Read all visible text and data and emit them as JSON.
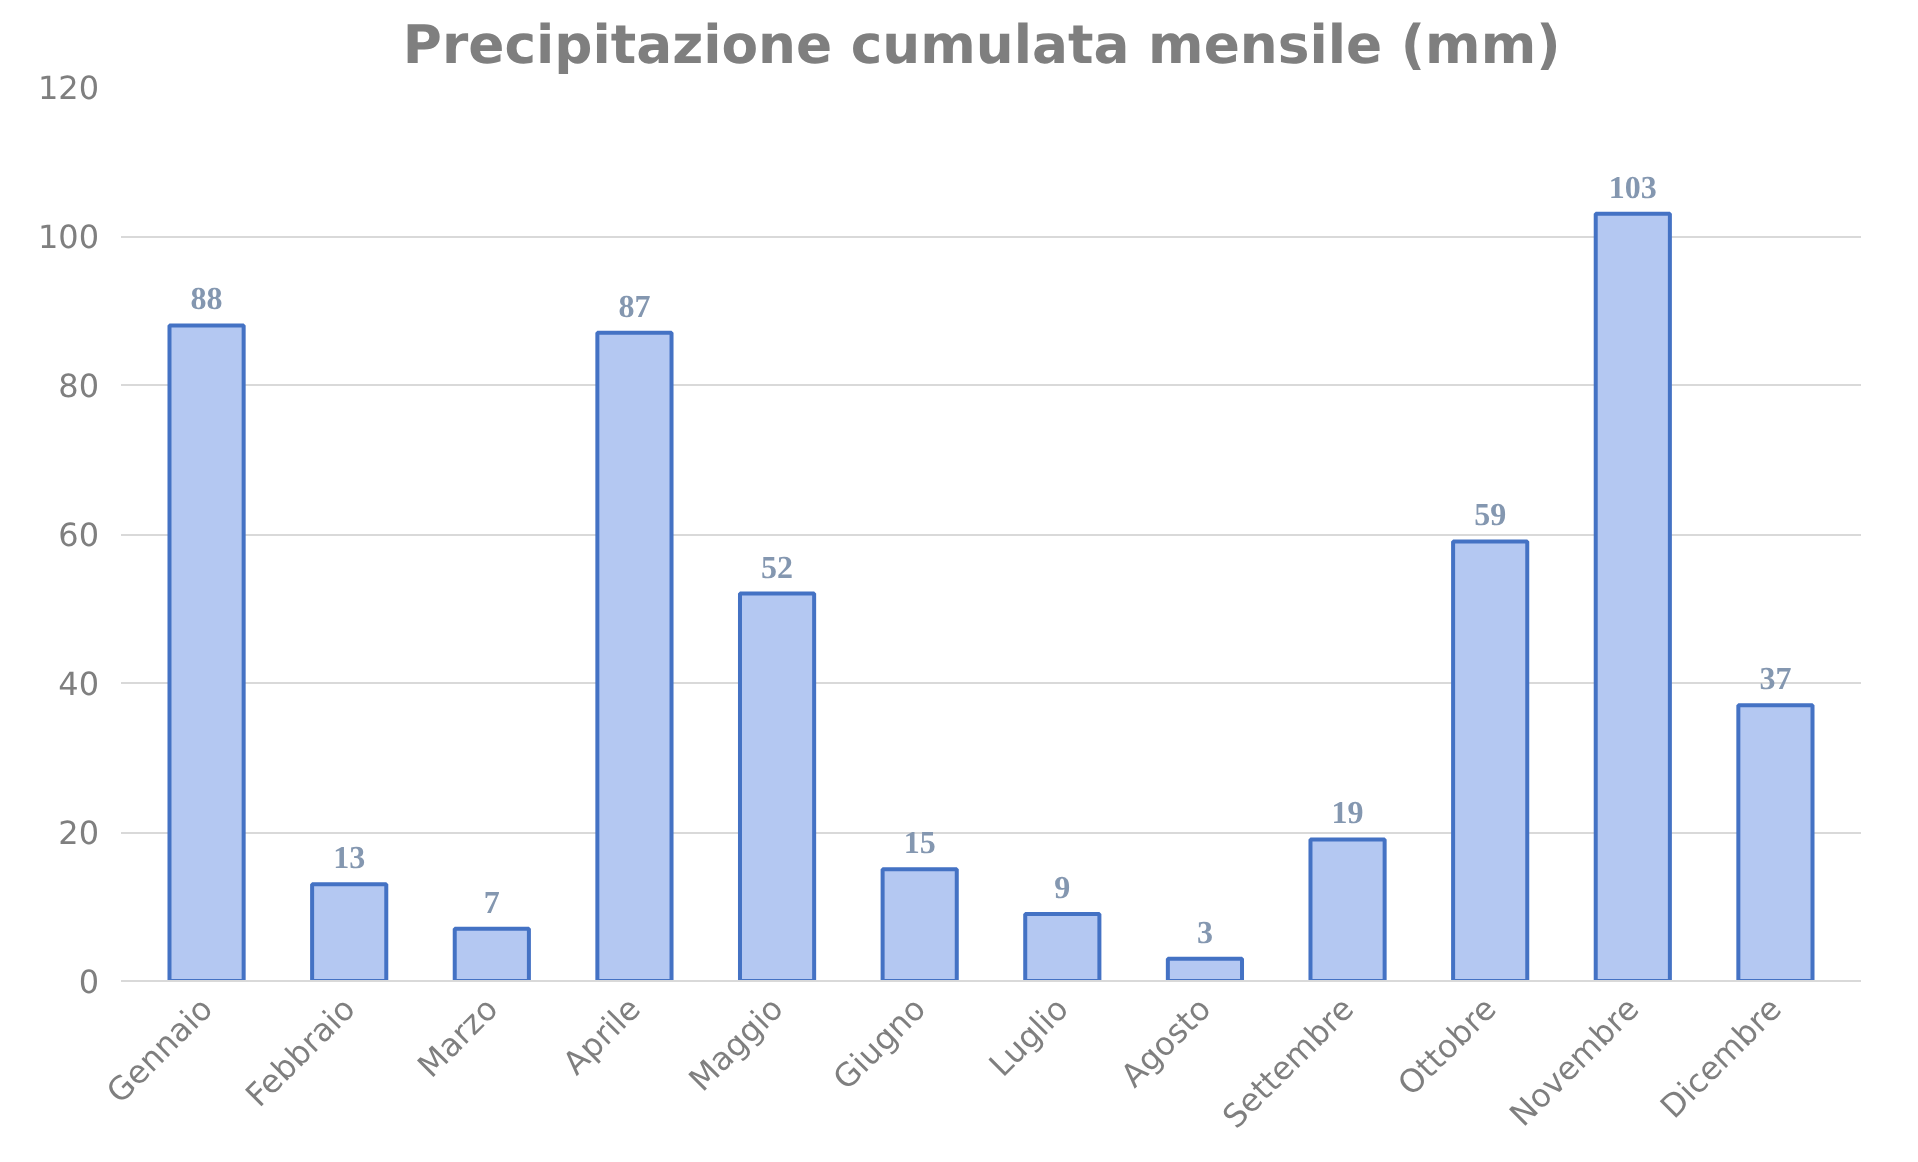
{
  "chart_data": {
    "type": "bar",
    "title": "Precipitazione  cumulata mensile (mm)",
    "categories": [
      "Gennaio",
      "Febbraio",
      "Marzo",
      "Aprile",
      "Maggio",
      "Giugno",
      "Luglio",
      "Agosto",
      "Settembre",
      "Ottobre",
      "Novembre",
      "Dicembre"
    ],
    "values": [
      88,
      13,
      7,
      87,
      52,
      15,
      9,
      3,
      19,
      59,
      103,
      37
    ],
    "color": "#b4c8f2",
    "ylim": [
      0,
      120
    ],
    "yticks": [
      0,
      20,
      40,
      60,
      80,
      100,
      120
    ],
    "grid": "y",
    "data_labels": true
  }
}
